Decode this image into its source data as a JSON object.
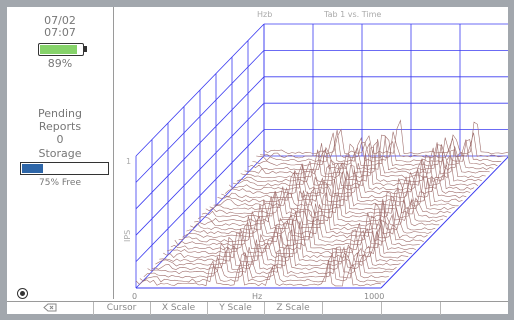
{
  "status": {
    "date": "07/02",
    "time": "07:07",
    "battery_percent_label": "89%",
    "battery_fraction": 0.89
  },
  "reports": {
    "pending_line1": "Pending",
    "pending_line2": "Reports",
    "pending_count": "0"
  },
  "storage": {
    "label": "Storage",
    "free_label": "75% Free",
    "used_fraction": 0.25
  },
  "plot": {
    "left_caption": "Hzb",
    "right_caption": "Tab 1 vs. Time",
    "y_axis_label": "IPS",
    "y_tick": "1",
    "x_start": "0",
    "x_unit": "Hz",
    "x_end": "1000",
    "trace_count": 34
  },
  "softkeys": {
    "back_icon": "back-arrow-icon",
    "cursor": "Cursor",
    "x_scale": "X Scale",
    "y_scale": "Y Scale",
    "z_scale": "Z Scale"
  },
  "colors": {
    "grid": "#3a3af0",
    "trace": "#a0706e",
    "battery": "#86d36a",
    "storage": "#2e66a8"
  }
}
